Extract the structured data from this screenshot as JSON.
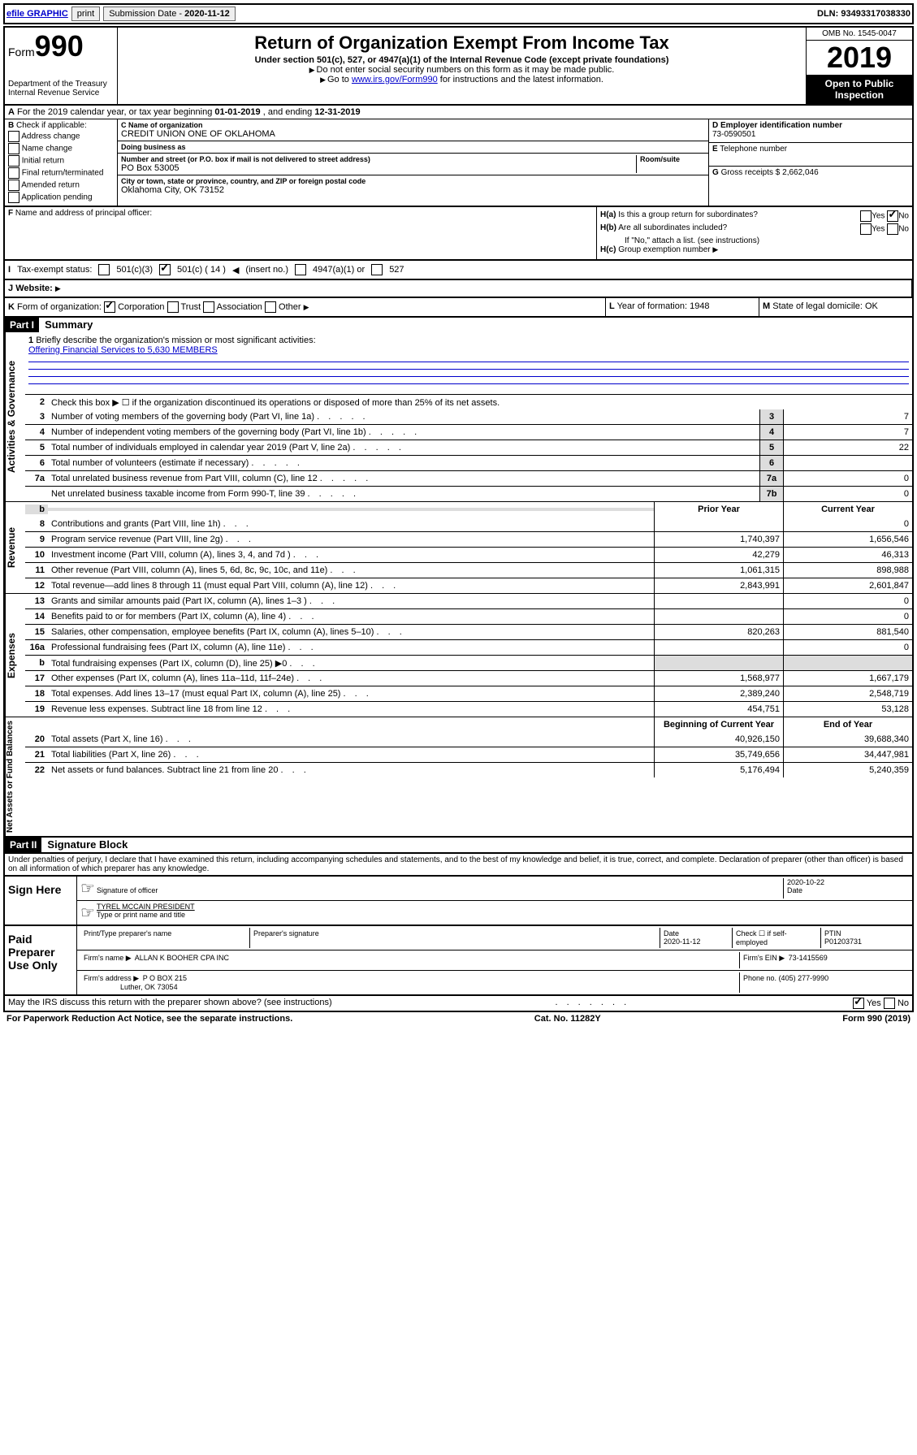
{
  "topbar": {
    "efile": "efile GRAPHIC",
    "print": "print",
    "subdate_label": "Submission Date - ",
    "subdate": "2020-11-12",
    "dln_label": "DLN: ",
    "dln": "93493317038330"
  },
  "header": {
    "form_label": "Form",
    "form_num": "990",
    "dept": "Department of the Treasury\nInternal Revenue Service",
    "title": "Return of Organization Exempt From Income Tax",
    "sub": "Under section 501(c), 527, or 4947(a)(1) of the Internal Revenue Code (except private foundations)",
    "note1": "Do not enter social security numbers on this form as it may be made public.",
    "note2_pre": "Go to ",
    "note2_link": "www.irs.gov/Form990",
    "note2_post": " for instructions and the latest information.",
    "omb": "OMB No. 1545-0047",
    "year": "2019",
    "open": "Open to Public Inspection"
  },
  "rowA": {
    "text": "For the 2019 calendar year, or tax year beginning ",
    "begin": "01-01-2019",
    "mid": " , and ending ",
    "end": "12-31-2019"
  },
  "colB": {
    "label": "Check if applicable:",
    "items": [
      "Address change",
      "Name change",
      "Initial return",
      "Final return/terminated",
      "Amended return",
      "Application pending"
    ]
  },
  "org": {
    "name_lbl": "Name of organization",
    "name": "CREDIT UNION ONE OF OKLAHOMA",
    "dba_lbl": "Doing business as",
    "dba": "",
    "addr_lbl": "Number and street (or P.O. box if mail is not delivered to street address)",
    "room_lbl": "Room/suite",
    "addr": "PO Box 53005",
    "city_lbl": "City or town, state or province, country, and ZIP or foreign postal code",
    "city": "Oklahoma City, OK  73152"
  },
  "colD": {
    "ein_lbl": "Employer identification number",
    "ein": "73-0590501",
    "tel_lbl": "Telephone number",
    "tel": "",
    "gross_lbl": "Gross receipts $ ",
    "gross": "2,662,046"
  },
  "rowF": {
    "lbl": "Name and address of principal officer:",
    "val": ""
  },
  "colH": {
    "ha_lbl": "Is this a group return for subordinates?",
    "ha_yes": "Yes",
    "ha_no": "No",
    "hb_lbl": "Are all subordinates included?",
    "hb_note": "If \"No,\" attach a list. (see instructions)",
    "hc_lbl": "Group exemption number"
  },
  "taxstatus": {
    "lbl": "Tax-exempt status:",
    "c14": "501(c) ( 14 )",
    "insert": "(insert no.)",
    "c3": "501(c)(3)",
    "a1": "4947(a)(1) or",
    "s527": "527"
  },
  "rowJ": {
    "lbl": "Website:",
    "val": ""
  },
  "rowK": {
    "lbl": "Form of organization:",
    "corp": "Corporation",
    "trust": "Trust",
    "assoc": "Association",
    "other": "Other"
  },
  "rowL": {
    "lbl": "Year of formation: ",
    "val": "1948"
  },
  "rowM": {
    "lbl": "State of legal domicile: ",
    "val": "OK"
  },
  "part1": {
    "hdr": "Part I",
    "title": "Summary",
    "l1": "Briefly describe the organization's mission or most significant activities:",
    "mission": "Offering Financial Services to 5,630 MEMBERS",
    "l2": "Check this box ▶ ☐ if the organization discontinued its operations or disposed of more than 25% of its net assets.",
    "vtab1": "Activities & Governance",
    "vtab2": "Revenue",
    "vtab3": "Expenses",
    "vtab4": "Net Assets or Fund Balances",
    "prior": "Prior Year",
    "current": "Current Year",
    "begin": "Beginning of Current Year",
    "end": "End of Year",
    "lines_gov": [
      {
        "n": "3",
        "d": "Number of voting members of the governing body (Part VI, line 1a)",
        "box": "3",
        "v": "7"
      },
      {
        "n": "4",
        "d": "Number of independent voting members of the governing body (Part VI, line 1b)",
        "box": "4",
        "v": "7"
      },
      {
        "n": "5",
        "d": "Total number of individuals employed in calendar year 2019 (Part V, line 2a)",
        "box": "5",
        "v": "22"
      },
      {
        "n": "6",
        "d": "Total number of volunteers (estimate if necessary)",
        "box": "6",
        "v": ""
      },
      {
        "n": "7a",
        "d": "Total unrelated business revenue from Part VIII, column (C), line 12",
        "box": "7a",
        "v": "0"
      },
      {
        "n": "",
        "d": "Net unrelated business taxable income from Form 990-T, line 39",
        "box": "7b",
        "v": "0"
      }
    ],
    "lines_rev": [
      {
        "n": "8",
        "d": "Contributions and grants (Part VIII, line 1h)",
        "p": "",
        "c": "0"
      },
      {
        "n": "9",
        "d": "Program service revenue (Part VIII, line 2g)",
        "p": "1,740,397",
        "c": "1,656,546"
      },
      {
        "n": "10",
        "d": "Investment income (Part VIII, column (A), lines 3, 4, and 7d )",
        "p": "42,279",
        "c": "46,313"
      },
      {
        "n": "11",
        "d": "Other revenue (Part VIII, column (A), lines 5, 6d, 8c, 9c, 10c, and 11e)",
        "p": "1,061,315",
        "c": "898,988"
      },
      {
        "n": "12",
        "d": "Total revenue—add lines 8 through 11 (must equal Part VIII, column (A), line 12)",
        "p": "2,843,991",
        "c": "2,601,847"
      }
    ],
    "lines_exp": [
      {
        "n": "13",
        "d": "Grants and similar amounts paid (Part IX, column (A), lines 1–3 )",
        "p": "",
        "c": "0"
      },
      {
        "n": "14",
        "d": "Benefits paid to or for members (Part IX, column (A), line 4)",
        "p": "",
        "c": "0"
      },
      {
        "n": "15",
        "d": "Salaries, other compensation, employee benefits (Part IX, column (A), lines 5–10)",
        "p": "820,263",
        "c": "881,540"
      },
      {
        "n": "16a",
        "d": "Professional fundraising fees (Part IX, column (A), line 11e)",
        "p": "",
        "c": "0"
      },
      {
        "n": "b",
        "d": "Total fundraising expenses (Part IX, column (D), line 25) ▶0",
        "p": "",
        "c": "",
        "gray": true
      },
      {
        "n": "17",
        "d": "Other expenses (Part IX, column (A), lines 11a–11d, 11f–24e)",
        "p": "1,568,977",
        "c": "1,667,179"
      },
      {
        "n": "18",
        "d": "Total expenses. Add lines 13–17 (must equal Part IX, column (A), line 25)",
        "p": "2,389,240",
        "c": "2,548,719"
      },
      {
        "n": "19",
        "d": "Revenue less expenses. Subtract line 18 from line 12",
        "p": "454,751",
        "c": "53,128"
      }
    ],
    "lines_net": [
      {
        "n": "20",
        "d": "Total assets (Part X, line 16)",
        "p": "40,926,150",
        "c": "39,688,340"
      },
      {
        "n": "21",
        "d": "Total liabilities (Part X, line 26)",
        "p": "35,749,656",
        "c": "34,447,981"
      },
      {
        "n": "22",
        "d": "Net assets or fund balances. Subtract line 21 from line 20",
        "p": "5,176,494",
        "c": "5,240,359"
      }
    ]
  },
  "part2": {
    "hdr": "Part II",
    "title": "Signature Block",
    "perjury": "Under penalties of perjury, I declare that I have examined this return, including accompanying schedules and statements, and to the best of my knowledge and belief, it is true, correct, and complete. Declaration of preparer (other than officer) is based on all information of which preparer has any knowledge.",
    "sign_here": "Sign Here",
    "sig_officer": "Signature of officer",
    "date": "Date",
    "sig_date": "2020-10-22",
    "officer_name": "TYREL MCCAIN  PRESIDENT",
    "type_name": "Type or print name and title",
    "paid": "Paid Preparer Use Only",
    "prep_name_lbl": "Print/Type preparer's name",
    "prep_sig_lbl": "Preparer's signature",
    "prep_date": "2020-11-12",
    "check_lbl": "Check ☐ if self-employed",
    "ptin_lbl": "PTIN",
    "ptin": "P01203731",
    "firm_name_lbl": "Firm's name",
    "firm_name": "ALLAN K BOOHER CPA INC",
    "firm_ein_lbl": "Firm's EIN",
    "firm_ein": "73-1415569",
    "firm_addr_lbl": "Firm's address",
    "firm_addr": "P O BOX 215",
    "firm_city": "Luther, OK  73054",
    "phone_lbl": "Phone no.",
    "phone": "(405) 277-9990",
    "discuss": "May the IRS discuss this return with the preparer shown above? (see instructions)",
    "yes": "Yes",
    "no": "No"
  },
  "footer": {
    "paperwork": "For Paperwork Reduction Act Notice, see the separate instructions.",
    "cat": "Cat. No. 11282Y",
    "form": "Form 990 (2019)"
  }
}
